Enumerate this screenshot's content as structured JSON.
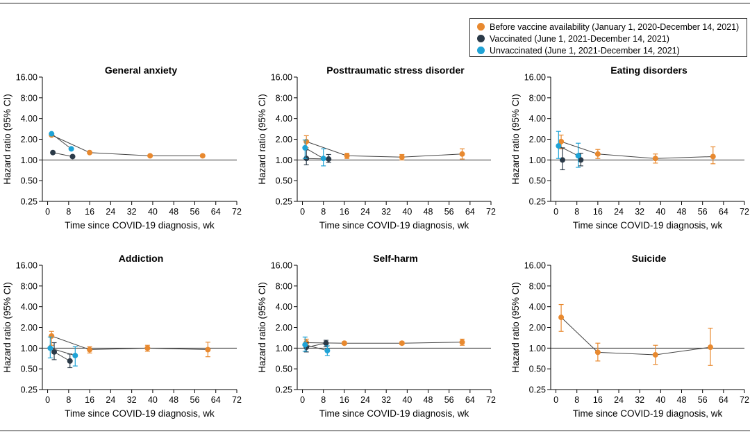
{
  "legend": [
    {
      "label": "Before vaccine availability (January 1, 2020-December 14, 2021)",
      "color": "#e8892f"
    },
    {
      "label": "Vaccinated (June 1, 2021-December 14, 2021)",
      "color": "#2b3a48"
    },
    {
      "label": "Unvaccinated (June 1, 2021-December 14, 2021)",
      "color": "#1fa3d6"
    }
  ],
  "chart_data": [
    {
      "type": "scatter",
      "title": "General anxiety",
      "xlabel": "Time since COVID-19 diagnosis, wk",
      "ylabel": "Hazard ratio (95% CI)",
      "x_ticks": [
        0,
        8,
        16,
        24,
        32,
        40,
        48,
        56,
        64,
        72
      ],
      "xlim": [
        -2,
        72
      ],
      "ylim": [
        0.25,
        16
      ],
      "y_ticks": [
        16,
        8,
        4,
        2,
        1,
        0.5,
        0.25
      ],
      "y_tick_labels": [
        "16.00",
        "8:00",
        "4.00",
        "2.00",
        "1.00",
        "0.50",
        "0.25"
      ],
      "series": [
        {
          "name": "Before vaccine availability",
          "color": "#e8892f",
          "points": [
            {
              "x": 1.5,
              "y": 2.3
            },
            {
              "x": 16,
              "y": 1.28
            },
            {
              "x": 39,
              "y": 1.15
            },
            {
              "x": 59,
              "y": 1.15
            }
          ]
        },
        {
          "name": "Vaccinated",
          "color": "#2b3a48",
          "points": [
            {
              "x": 2,
              "y": 1.28
            },
            {
              "x": 9.5,
              "y": 1.12
            }
          ]
        },
        {
          "name": "Unvaccinated",
          "color": "#1fa3d6",
          "points": [
            {
              "x": 1.5,
              "y": 2.4
            },
            {
              "x": 9,
              "y": 1.45
            }
          ]
        }
      ]
    },
    {
      "type": "scatter",
      "title": "Posttraumatic stress disorder",
      "xlabel": "Time since COVID-19 diagnosis, wk",
      "ylabel": "Hazard ratio (95% CI)",
      "x_ticks": [
        0,
        8,
        16,
        24,
        32,
        40,
        48,
        56,
        64,
        72
      ],
      "xlim": [
        -2,
        72
      ],
      "ylim": [
        0.25,
        16
      ],
      "y_ticks": [
        16,
        8,
        4,
        2,
        1,
        0.5,
        0.25
      ],
      "y_tick_labels": [
        "16.00",
        "8:00",
        "4.00",
        "2.00",
        "1.00",
        "0.50",
        "0.25"
      ],
      "series": [
        {
          "name": "Before vaccine availability",
          "color": "#e8892f",
          "points": [
            {
              "x": 1.5,
              "y": 1.85,
              "lo": 1.5,
              "hi": 2.25
            },
            {
              "x": 17,
              "y": 1.15,
              "lo": 1.05,
              "hi": 1.25
            },
            {
              "x": 38,
              "y": 1.1,
              "lo": 1.0,
              "hi": 1.2
            },
            {
              "x": 61,
              "y": 1.22,
              "lo": 1.03,
              "hi": 1.45
            }
          ]
        },
        {
          "name": "Vaccinated",
          "color": "#2b3a48",
          "points": [
            {
              "x": 1.5,
              "y": 1.05,
              "lo": 0.85,
              "hi": 1.4
            },
            {
              "x": 10,
              "y": 1.03,
              "lo": 0.92,
              "hi": 1.2
            }
          ]
        },
        {
          "name": "Unvaccinated",
          "color": "#1fa3d6",
          "points": [
            {
              "x": 1,
              "y": 1.5,
              "lo": 1.05,
              "hi": 1.95
            },
            {
              "x": 8,
              "y": 1.05,
              "lo": 0.82,
              "hi": 1.45
            }
          ]
        }
      ]
    },
    {
      "type": "scatter",
      "title": "Eating disorders",
      "xlabel": "Time since COVID-19 diagnosis, wk",
      "ylabel": "Hazard ratio (95% CI)",
      "x_ticks": [
        0,
        8,
        16,
        24,
        32,
        40,
        48,
        56,
        64,
        72
      ],
      "xlim": [
        -2,
        72
      ],
      "ylim": [
        0.25,
        16
      ],
      "y_ticks": [
        16,
        8,
        4,
        2,
        1,
        0.5,
        0.25
      ],
      "y_tick_labels": [
        "16.00",
        "8:00",
        "4.00",
        "2.00",
        "1.00",
        "0.50",
        "0.25"
      ],
      "series": [
        {
          "name": "Before vaccine availability",
          "color": "#e8892f",
          "points": [
            {
              "x": 2,
              "y": 1.85,
              "lo": 1.45,
              "hi": 2.3
            },
            {
              "x": 16,
              "y": 1.22,
              "lo": 1.05,
              "hi": 1.42
            },
            {
              "x": 38,
              "y": 1.05,
              "lo": 0.9,
              "hi": 1.22
            },
            {
              "x": 60,
              "y": 1.12,
              "lo": 0.88,
              "hi": 1.55
            }
          ]
        },
        {
          "name": "Vaccinated",
          "color": "#2b3a48",
          "points": [
            {
              "x": 2.5,
              "y": 1.0,
              "lo": 0.72,
              "hi": 1.5
            },
            {
              "x": 9.5,
              "y": 1.0,
              "lo": 0.82,
              "hi": 1.25
            }
          ]
        },
        {
          "name": "Unvaccinated",
          "color": "#1fa3d6",
          "points": [
            {
              "x": 1,
              "y": 1.6,
              "lo": 1.05,
              "hi": 2.6
            },
            {
              "x": 8.5,
              "y": 1.15,
              "lo": 0.78,
              "hi": 1.75
            }
          ]
        }
      ]
    },
    {
      "type": "scatter",
      "title": "Addiction",
      "xlabel": "Time since COVID-19 diagnosis, wk",
      "ylabel": "Hazard ratio (95% CI)",
      "x_ticks": [
        0,
        8,
        16,
        24,
        32,
        40,
        48,
        56,
        64,
        72
      ],
      "xlim": [
        -2,
        72
      ],
      "ylim": [
        0.25,
        16
      ],
      "y_ticks": [
        16,
        8,
        4,
        2,
        1,
        0.5,
        0.25
      ],
      "y_tick_labels": [
        "16.00",
        "8:00",
        "4.00",
        "2.00",
        "1.00",
        "0.50",
        "0.25"
      ],
      "series": [
        {
          "name": "Before vaccine availability",
          "color": "#e8892f",
          "points": [
            {
              "x": 1.5,
              "y": 1.5,
              "lo": 1.1,
              "hi": 1.75
            },
            {
              "x": 16,
              "y": 0.95,
              "lo": 0.85,
              "hi": 1.05
            },
            {
              "x": 38,
              "y": 1.0,
              "lo": 0.9,
              "hi": 1.1
            },
            {
              "x": 61,
              "y": 0.95,
              "lo": 0.75,
              "hi": 1.22
            }
          ]
        },
        {
          "name": "Vaccinated",
          "color": "#2b3a48",
          "points": [
            {
              "x": 2.5,
              "y": 0.88,
              "lo": 0.68,
              "hi": 1.2
            },
            {
              "x": 8.5,
              "y": 0.65,
              "lo": 0.52,
              "hi": 0.82
            }
          ]
        },
        {
          "name": "Unvaccinated",
          "color": "#1fa3d6",
          "points": [
            {
              "x": 1,
              "y": 1.0,
              "lo": 0.72,
              "hi": 1.45
            },
            {
              "x": 10.5,
              "y": 0.78,
              "lo": 0.55,
              "hi": 1.05
            }
          ]
        }
      ]
    },
    {
      "type": "scatter",
      "title": "Self-harm",
      "xlabel": "Time since COVID-19 diagnosis, wk",
      "ylabel": "Hazard ratio (95% CI)",
      "x_ticks": [
        0,
        8,
        16,
        24,
        32,
        40,
        48,
        56,
        64,
        72
      ],
      "xlim": [
        -2,
        72
      ],
      "ylim": [
        0.25,
        16
      ],
      "y_ticks": [
        16,
        8,
        4,
        2,
        1,
        0.5,
        0.25
      ],
      "y_tick_labels": [
        "16.00",
        "8:00",
        "4.00",
        "2.00",
        "1.00",
        "0.50",
        "0.25"
      ],
      "series": [
        {
          "name": "Before vaccine availability",
          "color": "#e8892f",
          "points": [
            {
              "x": 1.5,
              "y": 1.2,
              "lo": 1.05,
              "hi": 1.35
            },
            {
              "x": 16,
              "y": 1.18,
              "lo": 1.12,
              "hi": 1.24
            },
            {
              "x": 38,
              "y": 1.18,
              "lo": 1.12,
              "hi": 1.24
            },
            {
              "x": 61,
              "y": 1.22,
              "lo": 1.1,
              "hi": 1.35
            }
          ]
        },
        {
          "name": "Vaccinated",
          "color": "#2b3a48",
          "points": [
            {
              "x": 1.5,
              "y": 1.03,
              "lo": 0.88,
              "hi": 1.2
            },
            {
              "x": 9,
              "y": 1.18,
              "lo": 1.05,
              "hi": 1.3
            }
          ]
        },
        {
          "name": "Unvaccinated",
          "color": "#1fa3d6",
          "points": [
            {
              "x": 1,
              "y": 1.12,
              "lo": 0.9,
              "hi": 1.45
            },
            {
              "x": 9.5,
              "y": 0.92,
              "lo": 0.78,
              "hi": 1.08
            }
          ]
        }
      ]
    },
    {
      "type": "scatter",
      "title": "Suicide",
      "xlabel": "Time since COVID-19 diagnosis, wk",
      "ylabel": "Hazard ratio (95% CI)",
      "x_ticks": [
        0,
        8,
        16,
        24,
        32,
        40,
        48,
        56,
        64,
        72
      ],
      "xlim": [
        -2,
        72
      ],
      "ylim": [
        0.25,
        16
      ],
      "y_ticks": [
        16,
        8,
        4,
        2,
        1,
        0.5,
        0.25
      ],
      "y_tick_labels": [
        "16.00",
        "8:00",
        "4.00",
        "2.00",
        "1.00",
        "0.50",
        "0.25"
      ],
      "series": [
        {
          "name": "Before vaccine availability",
          "color": "#e8892f",
          "points": [
            {
              "x": 2,
              "y": 2.8,
              "lo": 1.75,
              "hi": 4.3
            },
            {
              "x": 16,
              "y": 0.87,
              "lo": 0.65,
              "hi": 1.18
            },
            {
              "x": 38,
              "y": 0.8,
              "lo": 0.58,
              "hi": 1.1
            },
            {
              "x": 59,
              "y": 1.03,
              "lo": 0.56,
              "hi": 1.95
            }
          ]
        }
      ]
    }
  ]
}
